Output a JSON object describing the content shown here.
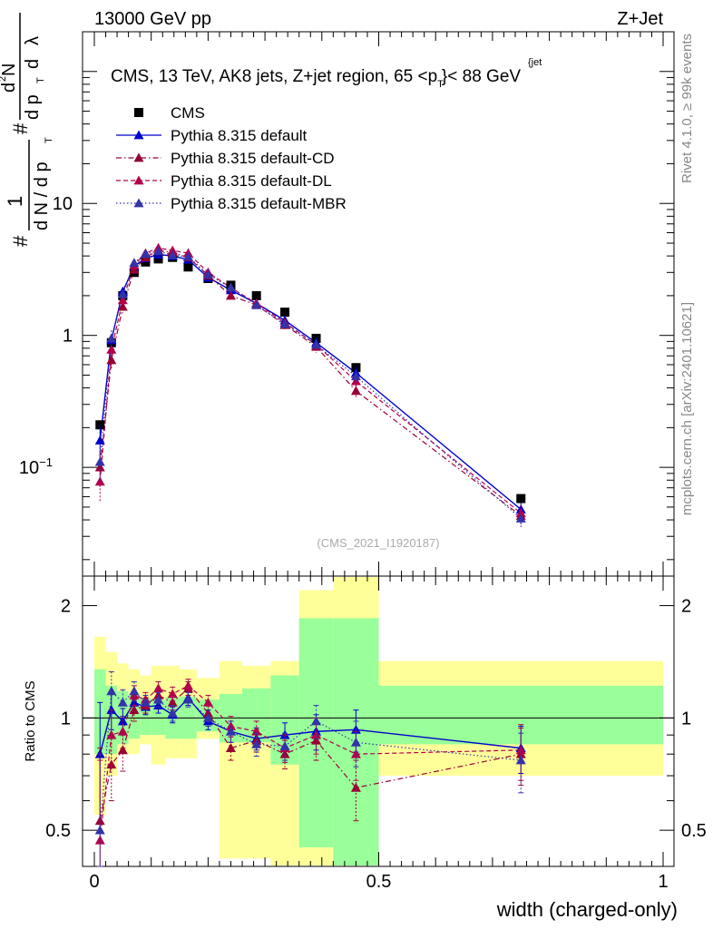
{
  "header": {
    "left": "13000 GeV pp",
    "right": "Z+Jet"
  },
  "title": "CMS, 13 TeV, AK8 jets, Z+jet region, 65 <p",
  "title_sub": "T",
  "title_sup": "{jet",
  "title_end": "}< 88 GeV",
  "side_right_top": "Rivet 4.1.0, ≥ 99k events",
  "side_right_bottom": "mcplots.cern.ch [arXiv:2401.10621]",
  "watermark": "(CMS_2021_I1920187)",
  "ylabel_main_parts": [
    "#",
    "1",
    "d N / d p",
    "T",
    "#",
    "d",
    "2",
    "N",
    "d p",
    "T",
    " d",
    "λ"
  ],
  "ylabel_ratio": "Ratio to CMS",
  "xlabel": "width (charged-only)",
  "colors": {
    "cms": "#000000",
    "default": "#0000cc",
    "cd": "#990033",
    "dl": "#b3004c",
    "mbr": "#3333aa",
    "band_inner": "#99ff99",
    "band_outer": "#ffff99"
  },
  "chart_data": {
    "type": "line",
    "xlim": [
      0,
      1
    ],
    "ylim_main": [
      0.015,
      200
    ],
    "ylim_ratio": [
      0.4,
      2.4
    ],
    "x_ticks": [
      {
        "v": 0,
        "label": "0"
      },
      {
        "v": 0.5,
        "label": "0.5"
      },
      {
        "v": 1,
        "label": "1"
      }
    ],
    "y_ticks_main": [
      {
        "v": 0.1,
        "label": "10",
        "sup": "−1"
      },
      {
        "v": 1,
        "label": "1"
      },
      {
        "v": 10,
        "label": "10"
      }
    ],
    "y_ticks_ratio": [
      {
        "v": 0.5,
        "label": "0.5"
      },
      {
        "v": 1,
        "label": "1"
      },
      {
        "v": 2,
        "label": "2"
      }
    ],
    "bin_edges": [
      0,
      0.02,
      0.04,
      0.06,
      0.08,
      0.1,
      0.125,
      0.15,
      0.18,
      0.22,
      0.26,
      0.31,
      0.36,
      0.42,
      0.5,
      1.0
    ],
    "x": [
      0.01,
      0.03,
      0.05,
      0.07,
      0.09,
      0.1125,
      0.1375,
      0.165,
      0.2,
      0.24,
      0.285,
      0.335,
      0.39,
      0.46,
      0.75
    ],
    "band_inner": [
      [
        0.8,
        1.35
      ],
      [
        0.8,
        1.22
      ],
      [
        0.85,
        1.18
      ],
      [
        0.88,
        1.15
      ],
      [
        0.9,
        1.13
      ],
      [
        0.9,
        1.12
      ],
      [
        0.88,
        1.14
      ],
      [
        0.88,
        1.14
      ],
      [
        0.92,
        1.12
      ],
      [
        0.86,
        1.16
      ],
      [
        0.86,
        1.2
      ],
      [
        0.75,
        1.3
      ],
      [
        0.45,
        1.85
      ],
      [
        0.4,
        1.85
      ],
      [
        0.85,
        1.22
      ]
    ],
    "band_outer": [
      [
        0.55,
        1.65
      ],
      [
        0.7,
        1.5
      ],
      [
        0.8,
        1.4
      ],
      [
        0.8,
        1.35
      ],
      [
        0.85,
        1.3
      ],
      [
        0.75,
        1.38
      ],
      [
        0.78,
        1.38
      ],
      [
        0.78,
        1.35
      ],
      [
        0.88,
        1.28
      ],
      [
        0.42,
        1.42
      ],
      [
        0.42,
        1.38
      ],
      [
        0.3,
        1.42
      ],
      [
        0.3,
        2.2
      ],
      [
        0.3,
        2.4
      ],
      [
        0.7,
        1.42
      ]
    ],
    "series": [
      {
        "name": "CMS",
        "key": "cms",
        "marker": "square",
        "line": "none",
        "values": [
          0.21,
          0.88,
          2.0,
          3.0,
          3.6,
          3.8,
          3.9,
          3.3,
          2.7,
          2.4,
          2.0,
          1.5,
          0.95,
          0.57,
          0.058
        ],
        "ratio": [
          1,
          1,
          1,
          1,
          1,
          1,
          1,
          1,
          1,
          1,
          1,
          1,
          1,
          1,
          1
        ]
      },
      {
        "name": "Pythia 8.315 default",
        "key": "default",
        "marker": "triangle",
        "line": "solid",
        "values": [
          0.16,
          0.92,
          2.15,
          3.35,
          3.85,
          4.1,
          4.0,
          3.75,
          2.75,
          2.2,
          1.75,
          1.3,
          0.88,
          0.52,
          0.048
        ],
        "ratio": [
          0.8,
          1.05,
          0.98,
          1.1,
          1.07,
          1.08,
          1.02,
          1.13,
          0.98,
          0.92,
          0.88,
          0.9,
          0.92,
          0.93,
          0.83
        ],
        "ratio_err": [
          0.3,
          0.12,
          0.08,
          0.06,
          0.05,
          0.05,
          0.05,
          0.05,
          0.05,
          0.06,
          0.06,
          0.07,
          0.1,
          0.12,
          0.12
        ]
      },
      {
        "name": "Pythia 8.315 default-CD",
        "key": "cd",
        "marker": "triangle",
        "line": "dashdot",
        "values": [
          0.1,
          0.65,
          1.65,
          3.15,
          3.9,
          4.4,
          4.25,
          3.9,
          2.85,
          2.0,
          1.7,
          1.2,
          0.82,
          0.38,
          0.043
        ],
        "ratio": [
          0.53,
          0.75,
          0.82,
          1.05,
          1.08,
          1.15,
          1.1,
          1.2,
          1.03,
          0.83,
          0.87,
          0.8,
          0.87,
          0.65,
          0.8
        ],
        "ratio_err": [
          0.3,
          0.15,
          0.1,
          0.07,
          0.05,
          0.05,
          0.05,
          0.05,
          0.05,
          0.06,
          0.06,
          0.07,
          0.1,
          0.12,
          0.14
        ]
      },
      {
        "name": "Pythia 8.315 default-DL",
        "key": "dl",
        "marker": "triangle",
        "line": "dashed",
        "values": [
          0.078,
          0.78,
          1.85,
          3.4,
          4.2,
          4.6,
          4.4,
          4.2,
          3.0,
          2.3,
          1.75,
          1.25,
          0.85,
          0.45,
          0.045
        ],
        "ratio": [
          0.47,
          0.9,
          0.92,
          1.15,
          1.12,
          1.2,
          1.16,
          1.22,
          1.1,
          0.95,
          0.92,
          0.83,
          0.9,
          0.8,
          0.82
        ],
        "ratio_err": [
          0.3,
          0.15,
          0.09,
          0.07,
          0.05,
          0.05,
          0.05,
          0.05,
          0.05,
          0.06,
          0.06,
          0.07,
          0.1,
          0.12,
          0.14
        ]
      },
      {
        "name": "Pythia 8.315 default-MBR",
        "key": "mbr",
        "marker": "triangle",
        "line": "dotted",
        "values": [
          0.11,
          0.95,
          2.05,
          3.55,
          4.15,
          4.35,
          4.05,
          3.95,
          2.9,
          2.3,
          1.7,
          1.22,
          0.85,
          0.49,
          0.041
        ],
        "ratio": [
          0.5,
          1.18,
          1.1,
          1.18,
          1.1,
          1.12,
          1.03,
          1.12,
          1.0,
          0.92,
          0.85,
          0.84,
          0.98,
          0.86,
          0.77
        ],
        "ratio_err": [
          0.3,
          0.15,
          0.09,
          0.07,
          0.05,
          0.05,
          0.05,
          0.05,
          0.05,
          0.06,
          0.06,
          0.07,
          0.1,
          0.12,
          0.14
        ]
      }
    ]
  }
}
